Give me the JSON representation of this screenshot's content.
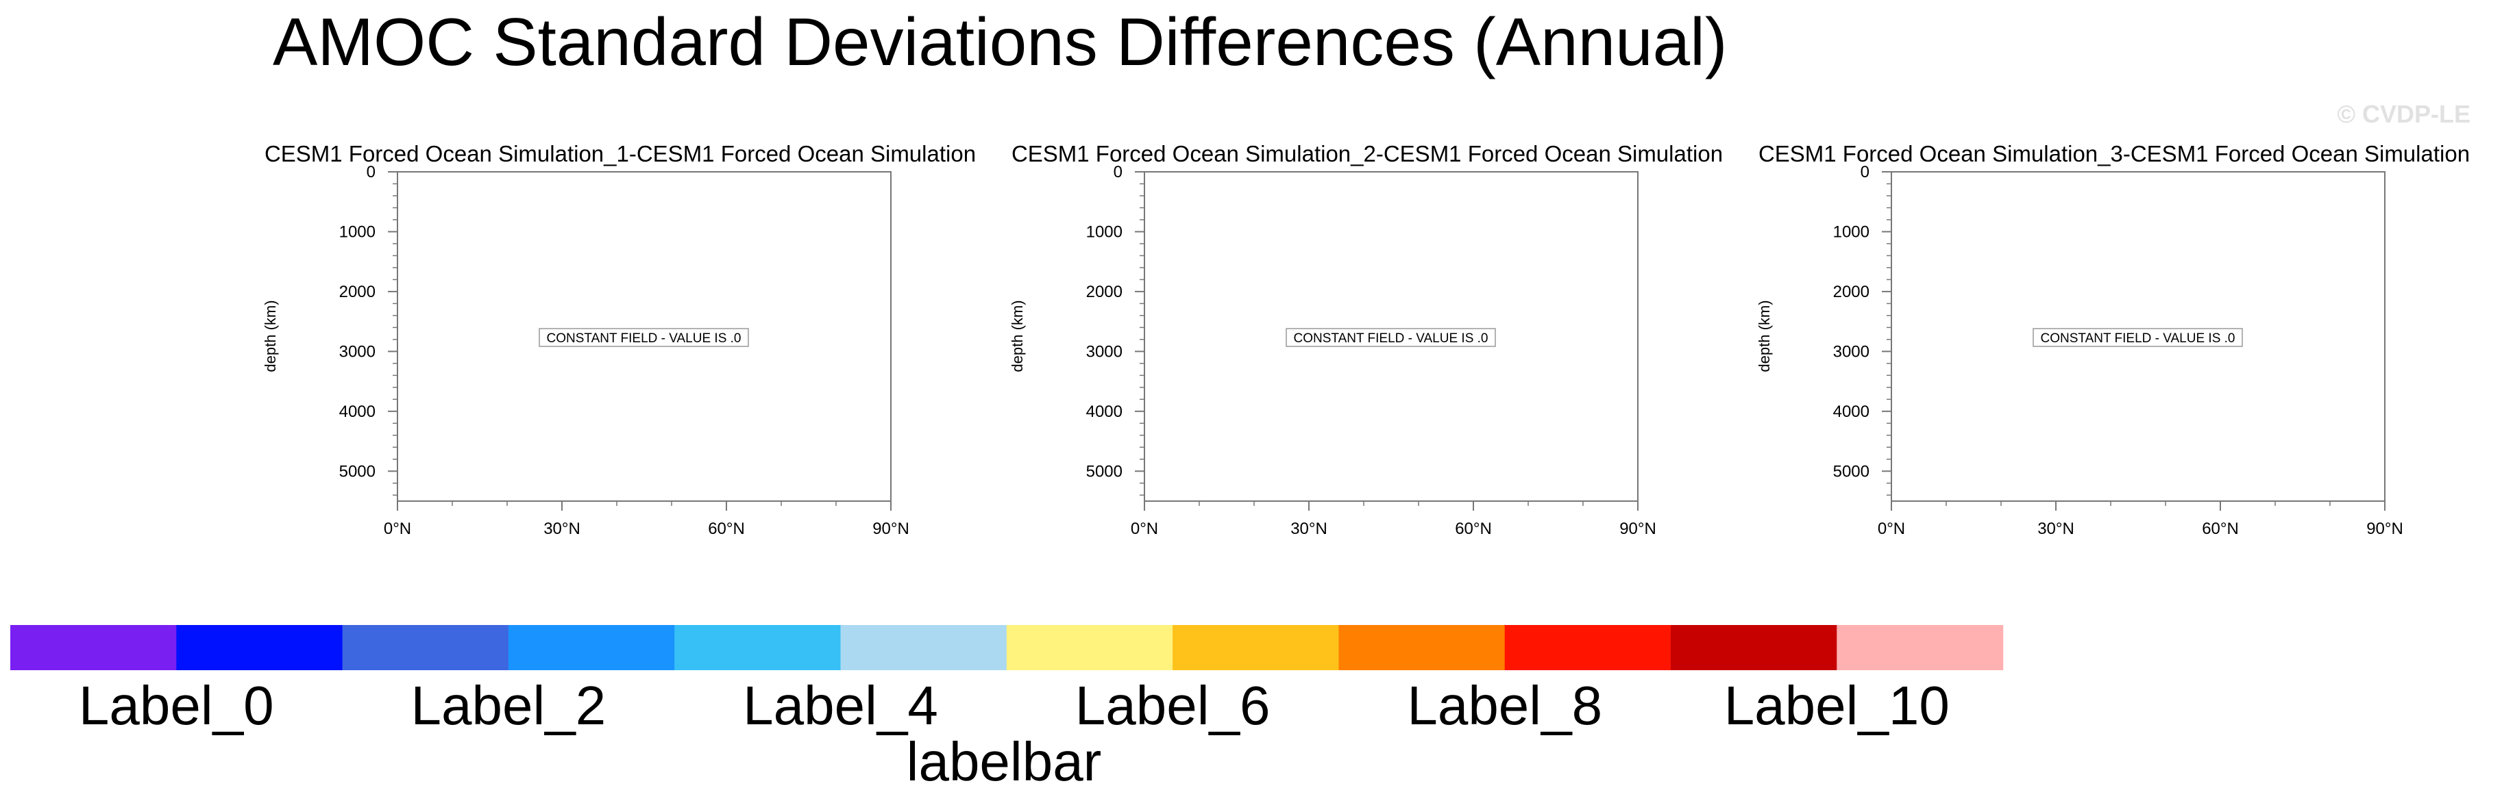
{
  "title": "AMOC Standard Deviations Differences (Annual)",
  "watermark": "© CVDP-LE",
  "colors": {
    "axis": "#777777",
    "text": "#000000",
    "watermark": "#e1e1e1"
  },
  "chart_data": [
    {
      "type": "heatmap",
      "title": "CESM1 Forced Ocean Simulation_1-CESM1 Forced Ocean Simulation",
      "xlabel": "",
      "ylabel": "depth (km)",
      "xlim": [
        0,
        90
      ],
      "ylim": [
        0,
        5500
      ],
      "y_inverted": true,
      "x_ticks": [
        0,
        30,
        60,
        90
      ],
      "x_tick_labels": [
        "0°N",
        "30°N",
        "60°N",
        "90°N"
      ],
      "y_ticks": [
        0,
        1000,
        2000,
        3000,
        4000,
        5000
      ],
      "y_tick_labels": [
        "0",
        "1000",
        "2000",
        "3000",
        "4000",
        "5000"
      ],
      "annotation": "CONSTANT FIELD - VALUE IS .0",
      "constant_value": 0
    },
    {
      "type": "heatmap",
      "title": "CESM1 Forced Ocean Simulation_2-CESM1 Forced Ocean Simulation",
      "xlabel": "",
      "ylabel": "depth (km)",
      "xlim": [
        0,
        90
      ],
      "ylim": [
        0,
        5500
      ],
      "y_inverted": true,
      "x_ticks": [
        0,
        30,
        60,
        90
      ],
      "x_tick_labels": [
        "0°N",
        "30°N",
        "60°N",
        "90°N"
      ],
      "y_ticks": [
        0,
        1000,
        2000,
        3000,
        4000,
        5000
      ],
      "y_tick_labels": [
        "0",
        "1000",
        "2000",
        "3000",
        "4000",
        "5000"
      ],
      "annotation": "CONSTANT FIELD - VALUE IS .0",
      "constant_value": 0
    },
    {
      "type": "heatmap",
      "title": "CESM1 Forced Ocean Simulation_3-CESM1 Forced Ocean Simulation",
      "xlabel": "",
      "ylabel": "depth (km)",
      "xlim": [
        0,
        90
      ],
      "ylim": [
        0,
        5500
      ],
      "y_inverted": true,
      "x_ticks": [
        0,
        30,
        60,
        90
      ],
      "x_tick_labels": [
        "0°N",
        "30°N",
        "60°N",
        "90°N"
      ],
      "y_ticks": [
        0,
        1000,
        2000,
        3000,
        4000,
        5000
      ],
      "y_tick_labels": [
        "0",
        "1000",
        "2000",
        "3000",
        "4000",
        "5000"
      ],
      "annotation": "CONSTANT FIELD - VALUE IS .0",
      "constant_value": 0
    }
  ],
  "labelbar": {
    "title": "labelbar",
    "colors": [
      "#7a1ff2",
      "#0011ff",
      "#3d67e0",
      "#1993ff",
      "#36c0f6",
      "#abd9f2",
      "#fff27d",
      "#ffc21a",
      "#ff7f00",
      "#ff1400",
      "#c70000",
      "#ffb0b0"
    ],
    "labels": [
      "Label_0",
      "Label_2",
      "Label_4",
      "Label_6",
      "Label_8",
      "Label_10"
    ],
    "label_box_indices": [
      1,
      3,
      5,
      7,
      9,
      11
    ]
  }
}
